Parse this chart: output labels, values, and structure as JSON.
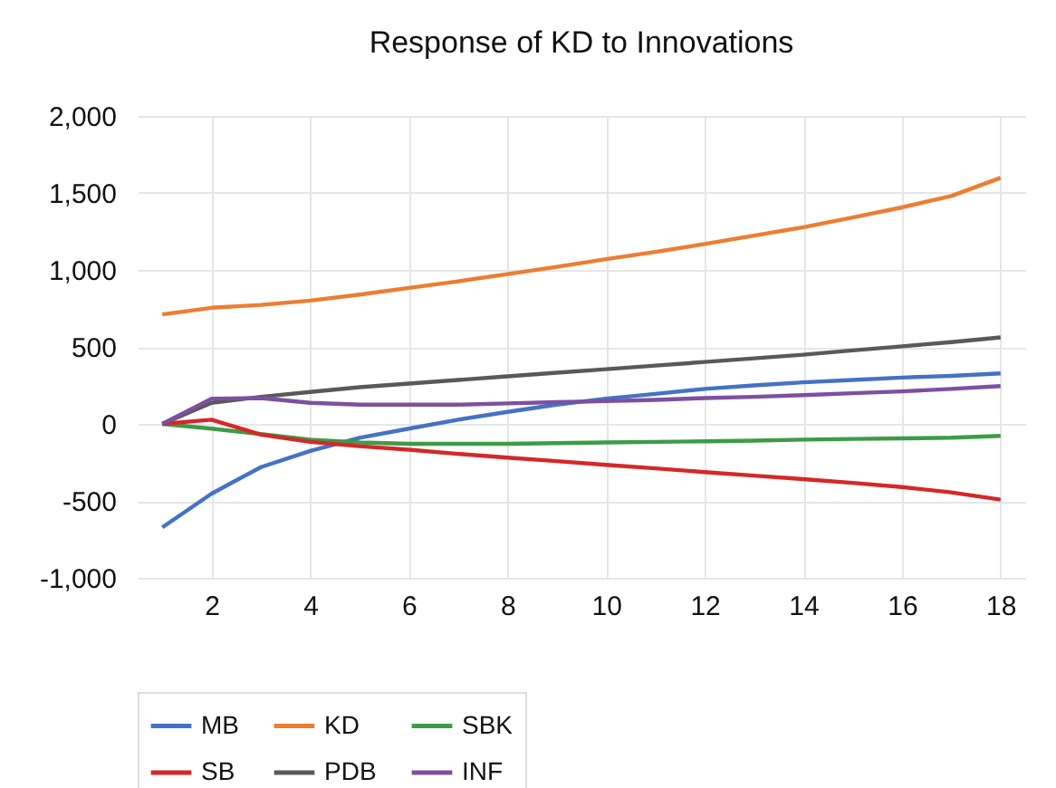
{
  "chart_data": {
    "type": "line",
    "title": "Response of KD to Innovations",
    "x": [
      1,
      2,
      3,
      4,
      5,
      6,
      7,
      8,
      9,
      10,
      11,
      12,
      13,
      14,
      15,
      16,
      17,
      18
    ],
    "xlim": [
      0.5,
      18.5
    ],
    "xticks": [
      2,
      4,
      6,
      8,
      10,
      12,
      14,
      16,
      18
    ],
    "ylim": [
      -1000,
      2000
    ],
    "yticks": [
      {
        "value": -1000,
        "label": "-1,000"
      },
      {
        "value": -500,
        "label": "-500"
      },
      {
        "value": 0,
        "label": "0"
      },
      {
        "value": 500,
        "label": "500"
      },
      {
        "value": 1000,
        "label": "1,000"
      },
      {
        "value": 1500,
        "label": "1,500"
      },
      {
        "value": 2000,
        "label": "2,000"
      }
    ],
    "grid": true,
    "legend": "bottom",
    "marker": "none",
    "line_style": "solid",
    "series": [
      {
        "name": "MB",
        "color": "#4472c4",
        "values": [
          -672,
          -453,
          -281,
          -176,
          -90,
          -31,
          27,
          78,
          125,
          164,
          195,
          227,
          250,
          270,
          285,
          301,
          312,
          328
        ]
      },
      {
        "name": "KD",
        "color": "#ed7d31",
        "values": [
          711,
          754,
          773,
          801,
          840,
          883,
          926,
          973,
          1020,
          1070,
          1117,
          1168,
          1223,
          1277,
          1340,
          1406,
          1480,
          1598
        ]
      },
      {
        "name": "SBK",
        "color": "#3d9b47",
        "values": [
          0,
          -31,
          -66,
          -102,
          -121,
          -129,
          -129,
          -129,
          -125,
          -121,
          -117,
          -113,
          -109,
          -102,
          -98,
          -94,
          -90,
          -78
        ]
      },
      {
        "name": "SB",
        "color": "#d62728",
        "values": [
          0,
          27,
          -70,
          -117,
          -145,
          -168,
          -195,
          -219,
          -242,
          -266,
          -289,
          -313,
          -336,
          -359,
          -383,
          -410,
          -445,
          -492
        ]
      },
      {
        "name": "PDB",
        "color": "#595959",
        "values": [
          0,
          137,
          176,
          207,
          238,
          262,
          285,
          309,
          332,
          355,
          379,
          402,
          426,
          449,
          477,
          504,
          531,
          562
        ]
      },
      {
        "name": "INF",
        "color": "#7e4fa0",
        "values": [
          0,
          164,
          168,
          137,
          125,
          125,
          125,
          133,
          141,
          148,
          156,
          168,
          176,
          187,
          199,
          211,
          227,
          246
        ]
      }
    ]
  }
}
